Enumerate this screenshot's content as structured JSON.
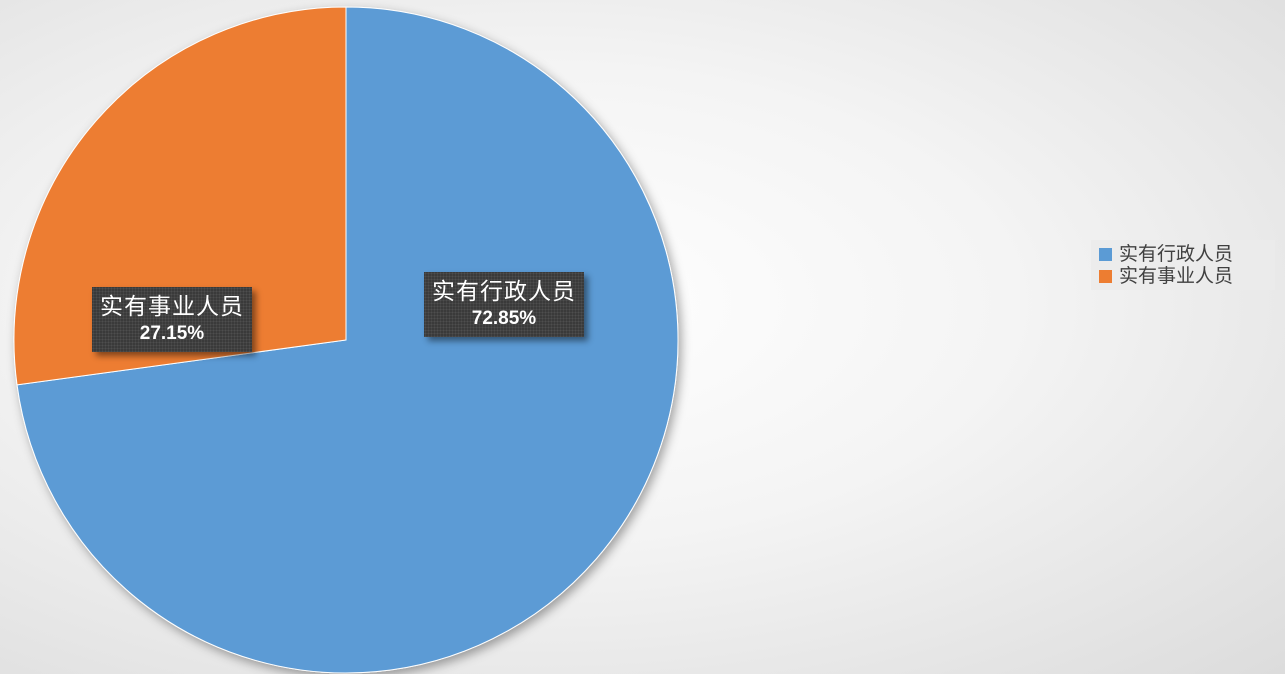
{
  "chart_data": {
    "type": "pie",
    "title": "",
    "slices": [
      {
        "label": "实有行政人员",
        "value": 72.85,
        "value_label": "72.85%",
        "color": "#5b9bd5"
      },
      {
        "label": "实有事业人员",
        "value": 27.15,
        "value_label": "27.15%",
        "color": "#ed7d31"
      }
    ],
    "legend_position": "right"
  }
}
